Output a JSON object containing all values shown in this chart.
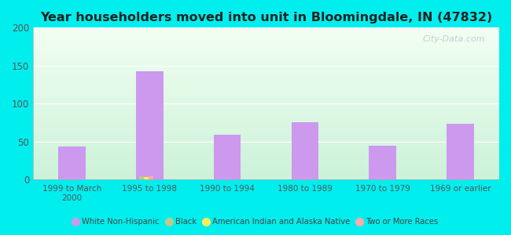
{
  "title": "Year householders moved into unit in Bloomingdale, IN (47832)",
  "categories": [
    "1999 to March\n2000",
    "1995 to 1998",
    "1990 to 1994",
    "1980 to 1989",
    "1970 to 1979",
    "1969 or earlier"
  ],
  "series": {
    "White Non-Hispanic": [
      44,
      143,
      59,
      76,
      45,
      74
    ],
    "Black": [
      0,
      5,
      0,
      0,
      0,
      0
    ],
    "American Indian and Alaska Native": [
      0,
      4,
      0,
      0,
      0,
      0
    ],
    "Two or More Races": [
      0,
      5,
      0,
      0,
      0,
      0
    ]
  },
  "colors": {
    "White Non-Hispanic": "#cc99ee",
    "Black": "#bbcc88",
    "American Indian and Alaska Native": "#ffee55",
    "Two or More Races": "#ffaaaa"
  },
  "ylim": [
    0,
    200
  ],
  "yticks": [
    0,
    50,
    100,
    150,
    200
  ],
  "background_color": "#00eeee",
  "watermark": "City-Data.com",
  "bar_width": 0.35,
  "small_bar_width": 0.06,
  "small_bar_offsets": [
    0.0,
    0.07,
    0.14
  ]
}
